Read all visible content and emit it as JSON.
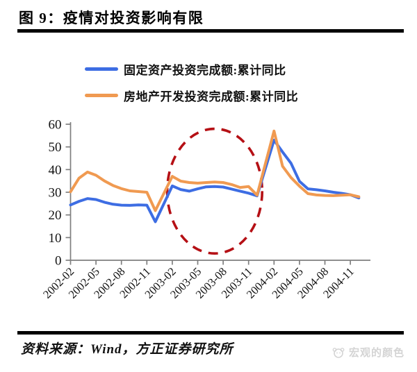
{
  "header": {
    "title": "图 9：疫情对投资影响有限"
  },
  "chart_data": {
    "type": "line",
    "x": [
      "2002-02",
      "2002-03",
      "2002-04",
      "2002-05",
      "2002-06",
      "2002-07",
      "2002-08",
      "2002-09",
      "2002-10",
      "2002-11",
      "2002-12",
      "2003-02",
      "2003-03",
      "2003-04",
      "2003-05",
      "2003-06",
      "2003-07",
      "2003-08",
      "2003-09",
      "2003-10",
      "2003-11",
      "2003-12",
      "2004-02",
      "2004-03",
      "2004-04",
      "2004-05",
      "2004-06",
      "2004-07",
      "2004-08",
      "2004-09",
      "2004-10",
      "2004-11",
      "2004-12"
    ],
    "series": [
      {
        "name": "固定资产投资完成额:累计同比",
        "color": "#3D6DE3",
        "values": [
          24.4,
          26.0,
          27.2,
          26.8,
          25.6,
          24.7,
          24.3,
          24.2,
          24.4,
          24.3,
          17.0,
          32.8,
          31.2,
          30.5,
          31.5,
          32.4,
          32.5,
          32.3,
          31.4,
          30.5,
          29.6,
          28.4,
          53.0,
          47.8,
          42.8,
          34.8,
          31.5,
          31.1,
          30.6,
          30.0,
          29.5,
          28.9,
          27.5
        ]
      },
      {
        "name": "房地产开发投资完成额:累计同比",
        "color": "#F09A51",
        "values": [
          30.2,
          36.2,
          38.9,
          37.5,
          35.0,
          33.0,
          31.6,
          30.6,
          30.3,
          30.0,
          21.9,
          37.0,
          34.9,
          34.3,
          34.0,
          34.3,
          34.5,
          34.3,
          33.4,
          32.1,
          32.5,
          28.7,
          57.0,
          41.5,
          36.5,
          32.7,
          29.4,
          28.8,
          28.6,
          28.5,
          28.7,
          28.9,
          28.0
        ]
      }
    ],
    "ylim": [
      0,
      60
    ],
    "yticks": [
      0,
      10,
      20,
      30,
      40,
      50,
      60
    ],
    "xticks": [
      "2002-02",
      "2002-05",
      "2002-08",
      "2002-11",
      "2003-02",
      "2003-05",
      "2003-08",
      "2003-11",
      "2004-02",
      "2004-05",
      "2004-08",
      "2004-11"
    ],
    "grid": false,
    "legend_position": "top",
    "axis_color": "#7F7F7F",
    "annotation_ellipse": {
      "style": "dashed",
      "color": "#B51015",
      "x_center_month": "2003-07",
      "x_radius_months": 5.6,
      "y_center": 30.5,
      "y_radius": 27.5
    }
  },
  "footer": {
    "source": "资料来源：Wind，方正证券研究所",
    "watermark": "宏观的颜色"
  }
}
